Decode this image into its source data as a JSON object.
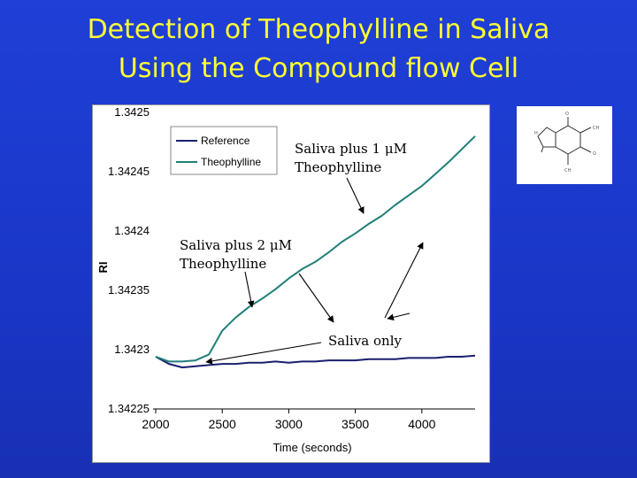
{
  "slide": {
    "title_line1": "Detection of Theophylline in Saliva",
    "title_line2": "Using the Compound flow Cell"
  },
  "colors": {
    "reference": "#1a1f6e",
    "theophylline": "#1f7f78",
    "title": "#ffff33"
  },
  "annotations": {
    "one_uM_line1": "Saliva plus 1 μM",
    "one_uM_line2": "Theophylline",
    "two_uM_line1": "Saliva plus 2 μM",
    "two_uM_line2": "Theophylline",
    "saliva_only": "Saliva only"
  },
  "molecule": {
    "icon": "theophylline-structure-icon"
  },
  "chart_data": {
    "type": "line",
    "xlabel": "Time (seconds)",
    "ylabel": "RI",
    "xlim": [
      1980,
      4400
    ],
    "ylim": [
      1.34225,
      1.3425
    ],
    "x_ticks": [
      2000,
      2500,
      3000,
      3500,
      4000
    ],
    "x_tick_labels": [
      "2000",
      "2500",
      "3000",
      "3500",
      "4000"
    ],
    "y_ticks": [
      1.34225,
      1.3423,
      1.34235,
      1.3424,
      1.34245,
      1.3425
    ],
    "y_tick_labels": [
      "1.34225",
      "1.3423",
      "1.34235",
      "1.3424",
      "1.34245",
      "1.3425"
    ],
    "legend_position": "top-left",
    "grid": false,
    "series": [
      {
        "name": "Reference",
        "x": [
          2000,
          2100,
          2200,
          2300,
          2400,
          2500,
          2600,
          2700,
          2800,
          2900,
          3000,
          3100,
          3200,
          3300,
          3400,
          3500,
          3600,
          3700,
          3800,
          3900,
          4000,
          4100,
          4200,
          4300,
          4400
        ],
        "y": [
          1.342294,
          1.342288,
          1.342285,
          1.342286,
          1.342287,
          1.342288,
          1.342288,
          1.342289,
          1.342289,
          1.34229,
          1.342289,
          1.34229,
          1.34229,
          1.342291,
          1.342291,
          1.342291,
          1.342292,
          1.342292,
          1.342292,
          1.342293,
          1.342293,
          1.342293,
          1.342294,
          1.342294,
          1.342295
        ]
      },
      {
        "name": "Theophylline",
        "x": [
          2000,
          2100,
          2200,
          2300,
          2400,
          2500,
          2600,
          2700,
          2800,
          2900,
          3000,
          3100,
          3200,
          3300,
          3400,
          3500,
          3600,
          3700,
          3800,
          3900,
          4000,
          4100,
          4200,
          4300,
          4400
        ],
        "y": [
          1.342294,
          1.34229,
          1.34229,
          1.342291,
          1.342296,
          1.342316,
          1.342327,
          1.342336,
          1.342343,
          1.342351,
          1.34236,
          1.342368,
          1.342374,
          1.342382,
          1.342391,
          1.342398,
          1.342406,
          1.342413,
          1.342422,
          1.34243,
          1.342438,
          1.342448,
          1.342458,
          1.342469,
          1.34248
        ]
      }
    ]
  }
}
